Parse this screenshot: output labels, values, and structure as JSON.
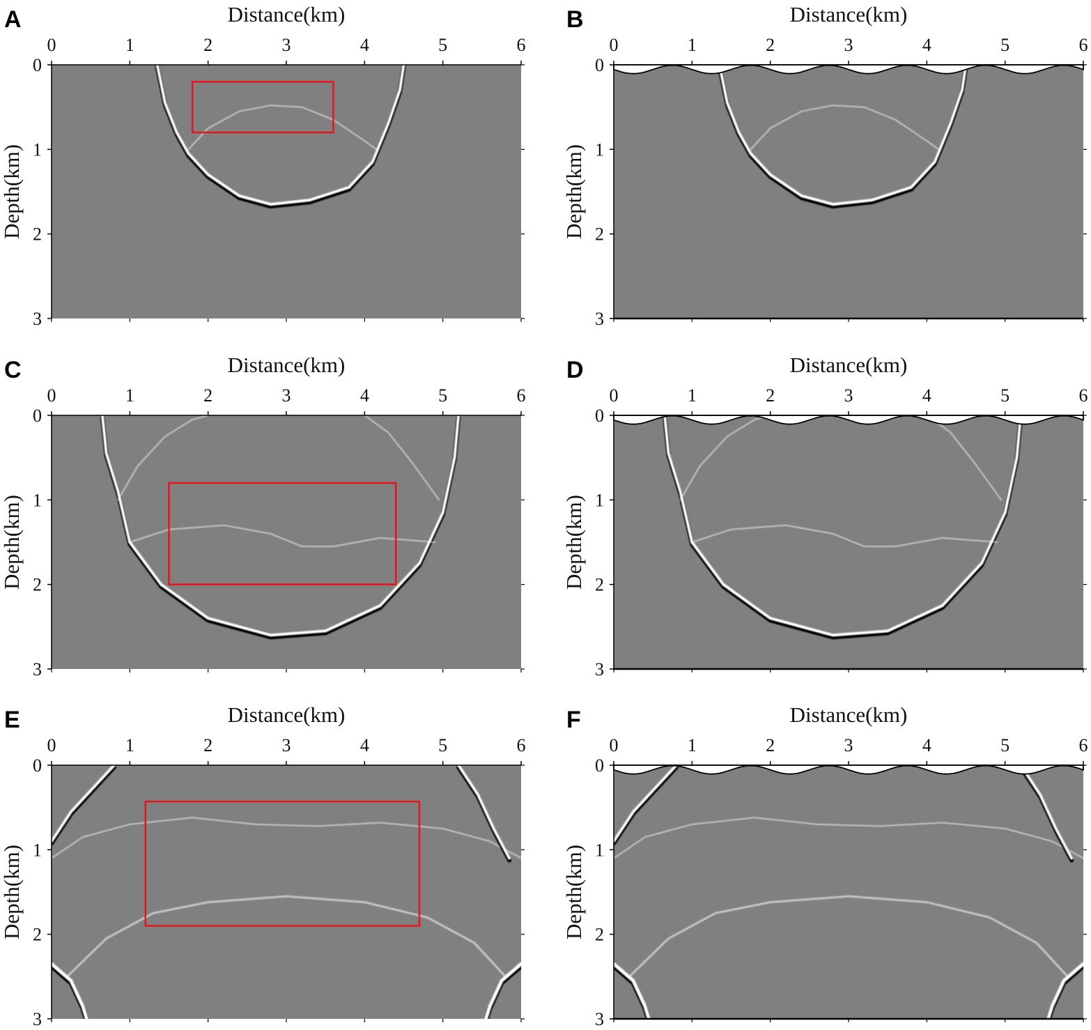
{
  "colors": {
    "background": "#808080",
    "wavefront_light": "#ffffff",
    "wavefront_dark": "#000000",
    "highlight_box": "#e8141c",
    "axis": "#000000"
  },
  "chart_data": [
    {
      "panel": "A",
      "type": "heatmap",
      "xlabel": "Distance(km)",
      "ylabel": "Depth(km)",
      "xlim": [
        0,
        6
      ],
      "ylim": [
        0,
        3
      ],
      "xticks": [
        "0",
        "1",
        "2",
        "3",
        "4",
        "5",
        "6"
      ],
      "yticks": [
        "0",
        "1",
        "2",
        "3"
      ],
      "surface": "flat",
      "highlight_box": {
        "x0": 1.8,
        "x1": 3.6,
        "y0": 0.2,
        "y1": 0.8
      }
    },
    {
      "panel": "B",
      "type": "heatmap",
      "xlabel": "Distance(km)",
      "ylabel": "Depth(km)",
      "xlim": [
        0,
        6
      ],
      "ylim": [
        0,
        3
      ],
      "xticks": [
        "0",
        "1",
        "2",
        "3",
        "4",
        "5",
        "6"
      ],
      "yticks": [
        "0",
        "1",
        "2",
        "3"
      ],
      "surface": "undulating"
    },
    {
      "panel": "C",
      "type": "heatmap",
      "xlabel": "Distance(km)",
      "ylabel": "Depth(km)",
      "xlim": [
        0,
        6
      ],
      "ylim": [
        0,
        3
      ],
      "xticks": [
        "0",
        "1",
        "2",
        "3",
        "4",
        "5",
        "6"
      ],
      "yticks": [
        "0",
        "1",
        "2",
        "3"
      ],
      "surface": "flat",
      "highlight_box": {
        "x0": 1.5,
        "x1": 4.4,
        "y0": 0.8,
        "y1": 2.0
      }
    },
    {
      "panel": "D",
      "type": "heatmap",
      "xlabel": "Distance(km)",
      "ylabel": "Depth(km)",
      "xlim": [
        0,
        6
      ],
      "ylim": [
        0,
        3
      ],
      "xticks": [
        "0",
        "1",
        "2",
        "3",
        "4",
        "5",
        "6"
      ],
      "yticks": [
        "0",
        "1",
        "2",
        "3"
      ],
      "surface": "undulating"
    },
    {
      "panel": "E",
      "type": "heatmap",
      "xlabel": "Distance(km)",
      "ylabel": "Depth(km)",
      "xlim": [
        0,
        6
      ],
      "ylim": [
        0,
        3
      ],
      "xticks": [
        "0",
        "1",
        "2",
        "3",
        "4",
        "5",
        "6"
      ],
      "yticks": [
        "0",
        "1",
        "2",
        "3"
      ],
      "surface": "flat",
      "highlight_box": {
        "x0": 1.2,
        "x1": 4.7,
        "y0": 0.43,
        "y1": 1.9
      }
    },
    {
      "panel": "F",
      "type": "heatmap",
      "xlabel": "Distance(km)",
      "ylabel": "Depth(km)",
      "xlim": [
        0,
        6
      ],
      "ylim": [
        0,
        3
      ],
      "xticks": [
        "0",
        "1",
        "2",
        "3",
        "4",
        "5",
        "6"
      ],
      "yticks": [
        "0",
        "1",
        "2",
        "3"
      ],
      "surface": "undulating"
    }
  ]
}
